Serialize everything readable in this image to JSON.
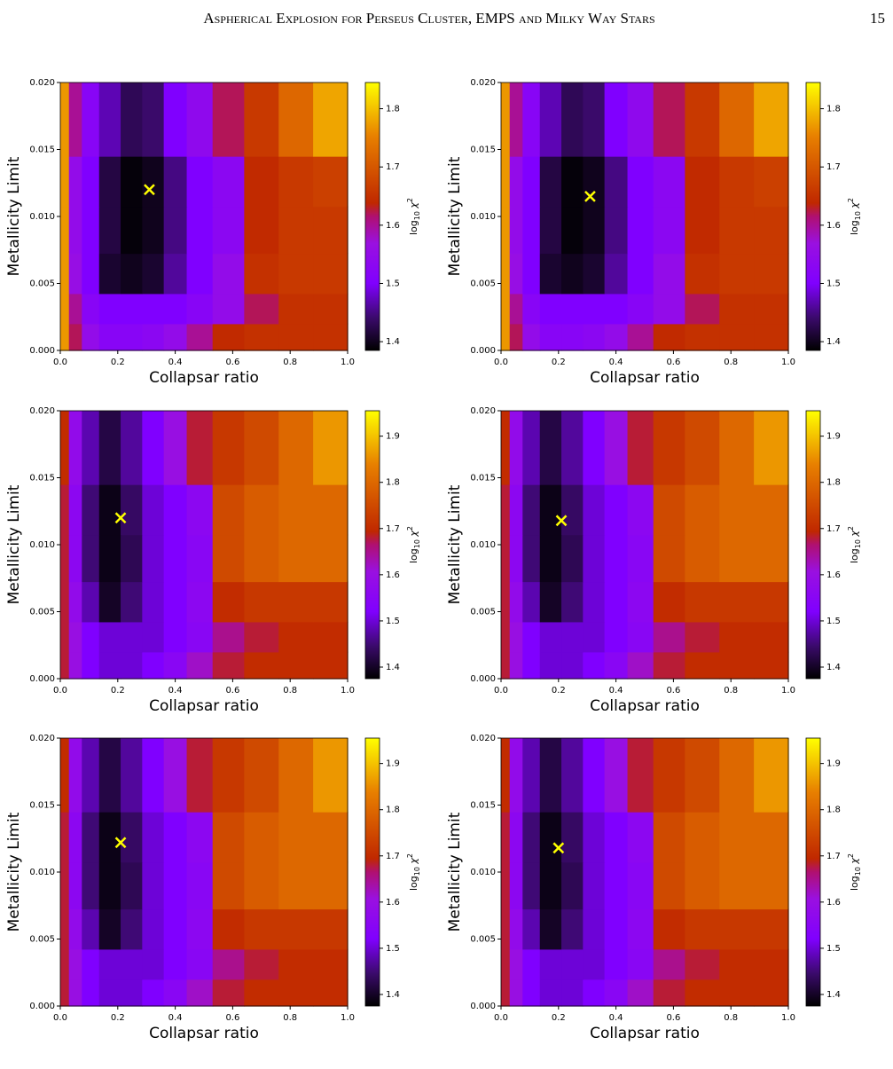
{
  "header": {
    "title": "Aspherical Explosion for Perseus Cluster, EMPS and Milky Way Stars",
    "page_number": "15"
  },
  "colormap": [
    {
      "at": 0,
      "color": "#000000"
    },
    {
      "at": 0.12,
      "color": "#3a0a6a"
    },
    {
      "at": 0.25,
      "color": "#8000ff"
    },
    {
      "at": 0.4,
      "color": "#9a10e0"
    },
    {
      "at": 0.5,
      "color": "#b01070"
    },
    {
      "at": 0.55,
      "color": "#c02800"
    },
    {
      "at": 0.8,
      "color": "#e88000"
    },
    {
      "at": 1,
      "color": "#ffff00"
    }
  ],
  "chart_data": [
    {
      "type": "heatmap",
      "xlabel": "Collapsar ratio",
      "ylabel": "Metallicity Limit",
      "colorbar_label": {
        "base": "log",
        "sub": "10",
        "sym": " χ",
        "sup": "2"
      },
      "x": [
        0.01,
        0.05,
        0.1,
        0.17,
        0.25,
        0.32,
        0.4,
        0.48,
        0.58,
        0.7,
        0.82,
        0.94
      ],
      "y": [
        0.001,
        0.003,
        0.0055,
        0.009,
        0.0125,
        0.0165
      ],
      "z": [
        [
          1.77,
          1.62,
          1.55,
          1.52,
          1.52,
          1.53,
          1.55,
          1.6,
          1.64,
          1.65,
          1.65,
          1.65
        ],
        [
          1.77,
          1.6,
          1.52,
          1.5,
          1.5,
          1.5,
          1.5,
          1.52,
          1.55,
          1.62,
          1.65,
          1.65
        ],
        [
          1.77,
          1.56,
          1.5,
          1.41,
          1.4,
          1.41,
          1.46,
          1.5,
          1.55,
          1.65,
          1.66,
          1.66
        ],
        [
          1.77,
          1.55,
          1.5,
          1.42,
          1.39,
          1.4,
          1.45,
          1.5,
          1.53,
          1.64,
          1.66,
          1.66
        ],
        [
          1.77,
          1.55,
          1.5,
          1.42,
          1.39,
          1.4,
          1.45,
          1.5,
          1.53,
          1.64,
          1.66,
          1.67
        ],
        [
          1.77,
          1.6,
          1.52,
          1.47,
          1.43,
          1.44,
          1.5,
          1.54,
          1.62,
          1.66,
          1.72,
          1.78
        ]
      ],
      "xlim": [
        0,
        1
      ],
      "ylim": [
        0,
        0.02
      ],
      "xticks": [
        {
          "value": 0,
          "label": "0.0"
        },
        0.2,
        0.4,
        0.6,
        0.8,
        {
          "value": 1,
          "label": "1.0"
        }
      ],
      "yticks": [
        {
          "value": 0,
          "label": "0.000"
        },
        0.005,
        {
          "value": 0.01,
          "label": "0.010"
        },
        0.015,
        {
          "value": 0.02,
          "label": "0.020"
        }
      ],
      "clim": [
        1.385,
        1.845
      ],
      "cticks": [
        1.4,
        1.5,
        1.6,
        1.7,
        1.8
      ],
      "marker": {
        "x": 0.31,
        "y": 0.012,
        "color": "#ffff00"
      }
    },
    {
      "type": "heatmap",
      "xlabel": "Collapsar ratio",
      "ylabel": "Metallicity Limit",
      "colorbar_label": {
        "base": "log",
        "sub": "10",
        "sym": " χ",
        "sup": "2"
      },
      "x": [
        0.01,
        0.05,
        0.1,
        0.17,
        0.25,
        0.32,
        0.4,
        0.48,
        0.58,
        0.7,
        0.82,
        0.94
      ],
      "y": [
        0.001,
        0.003,
        0.0055,
        0.009,
        0.0125,
        0.0165
      ],
      "z": [
        [
          1.77,
          1.62,
          1.55,
          1.52,
          1.52,
          1.53,
          1.55,
          1.6,
          1.64,
          1.65,
          1.65,
          1.65
        ],
        [
          1.77,
          1.6,
          1.52,
          1.5,
          1.5,
          1.5,
          1.5,
          1.52,
          1.55,
          1.62,
          1.65,
          1.65
        ],
        [
          1.77,
          1.56,
          1.5,
          1.41,
          1.4,
          1.41,
          1.46,
          1.5,
          1.55,
          1.65,
          1.66,
          1.66
        ],
        [
          1.77,
          1.55,
          1.5,
          1.42,
          1.39,
          1.4,
          1.45,
          1.5,
          1.53,
          1.64,
          1.66,
          1.66
        ],
        [
          1.77,
          1.55,
          1.5,
          1.42,
          1.39,
          1.4,
          1.45,
          1.5,
          1.53,
          1.64,
          1.66,
          1.67
        ],
        [
          1.77,
          1.6,
          1.52,
          1.47,
          1.43,
          1.44,
          1.5,
          1.54,
          1.62,
          1.66,
          1.72,
          1.78
        ]
      ],
      "xlim": [
        0,
        1
      ],
      "ylim": [
        0,
        0.02
      ],
      "xticks": [
        {
          "value": 0,
          "label": "0.0"
        },
        0.2,
        0.4,
        0.6,
        0.8,
        {
          "value": 1,
          "label": "1.0"
        }
      ],
      "yticks": [
        {
          "value": 0,
          "label": "0.000"
        },
        0.005,
        {
          "value": 0.01,
          "label": "0.010"
        },
        0.015,
        {
          "value": 0.02,
          "label": "0.020"
        }
      ],
      "clim": [
        1.385,
        1.845
      ],
      "cticks": [
        1.4,
        1.5,
        1.6,
        1.7,
        1.8
      ],
      "marker": {
        "x": 0.31,
        "y": 0.0115,
        "color": "#ffff00"
      }
    },
    {
      "type": "heatmap",
      "xlabel": "Collapsar ratio",
      "ylabel": "Metallicity Limit",
      "colorbar_label": {
        "base": "log",
        "sub": "10",
        "sym": " χ",
        "sup": "2"
      },
      "x": [
        0.01,
        0.05,
        0.1,
        0.17,
        0.25,
        0.32,
        0.4,
        0.48,
        0.58,
        0.7,
        0.82,
        0.94
      ],
      "y": [
        0.001,
        0.003,
        0.0055,
        0.009,
        0.0125,
        0.0165
      ],
      "z": [
        [
          1.68,
          1.6,
          1.52,
          1.5,
          1.5,
          1.52,
          1.55,
          1.62,
          1.68,
          1.7,
          1.7,
          1.7
        ],
        [
          1.68,
          1.6,
          1.52,
          1.5,
          1.5,
          1.5,
          1.52,
          1.55,
          1.65,
          1.68,
          1.7,
          1.7
        ],
        [
          1.68,
          1.58,
          1.48,
          1.4,
          1.45,
          1.5,
          1.52,
          1.56,
          1.7,
          1.72,
          1.72,
          1.72
        ],
        [
          1.68,
          1.56,
          1.45,
          1.39,
          1.43,
          1.5,
          1.52,
          1.55,
          1.75,
          1.78,
          1.8,
          1.8
        ],
        [
          1.68,
          1.56,
          1.45,
          1.39,
          1.44,
          1.5,
          1.52,
          1.56,
          1.75,
          1.78,
          1.8,
          1.8
        ],
        [
          1.7,
          1.58,
          1.48,
          1.42,
          1.47,
          1.52,
          1.6,
          1.68,
          1.72,
          1.75,
          1.8,
          1.86
        ]
      ],
      "xlim": [
        0,
        1
      ],
      "ylim": [
        0,
        0.02
      ],
      "xticks": [
        {
          "value": 0,
          "label": "0.0"
        },
        0.2,
        0.4,
        0.6,
        0.8,
        {
          "value": 1,
          "label": "1.0"
        }
      ],
      "yticks": [
        {
          "value": 0,
          "label": "0.000"
        },
        0.005,
        {
          "value": 0.01,
          "label": "0.010"
        },
        0.015,
        {
          "value": 0.02,
          "label": "0.020"
        }
      ],
      "clim": [
        1.375,
        1.955
      ],
      "cticks": [
        1.4,
        1.5,
        1.6,
        1.7,
        1.8,
        1.9
      ],
      "marker": {
        "x": 0.21,
        "y": 0.012,
        "color": "#ffff00"
      }
    },
    {
      "type": "heatmap",
      "xlabel": "Collapsar ratio",
      "ylabel": "Metallicity Limit",
      "colorbar_label": {
        "base": "log",
        "sub": "10",
        "sym": " χ",
        "sup": "2"
      },
      "x": [
        0.01,
        0.05,
        0.1,
        0.17,
        0.25,
        0.32,
        0.4,
        0.48,
        0.58,
        0.7,
        0.82,
        0.94
      ],
      "y": [
        0.001,
        0.003,
        0.0055,
        0.009,
        0.0125,
        0.0165
      ],
      "z": [
        [
          1.68,
          1.6,
          1.52,
          1.5,
          1.5,
          1.52,
          1.55,
          1.62,
          1.68,
          1.7,
          1.7,
          1.7
        ],
        [
          1.68,
          1.6,
          1.52,
          1.5,
          1.5,
          1.5,
          1.52,
          1.55,
          1.65,
          1.68,
          1.7,
          1.7
        ],
        [
          1.68,
          1.58,
          1.48,
          1.4,
          1.45,
          1.5,
          1.52,
          1.56,
          1.7,
          1.72,
          1.72,
          1.72
        ],
        [
          1.68,
          1.56,
          1.45,
          1.39,
          1.43,
          1.5,
          1.52,
          1.55,
          1.75,
          1.78,
          1.8,
          1.8
        ],
        [
          1.68,
          1.56,
          1.45,
          1.39,
          1.44,
          1.5,
          1.52,
          1.56,
          1.75,
          1.78,
          1.8,
          1.8
        ],
        [
          1.7,
          1.58,
          1.48,
          1.42,
          1.47,
          1.52,
          1.6,
          1.68,
          1.72,
          1.75,
          1.8,
          1.86
        ]
      ],
      "xlim": [
        0,
        1
      ],
      "ylim": [
        0,
        0.02
      ],
      "xticks": [
        {
          "value": 0,
          "label": "0.0"
        },
        0.2,
        0.4,
        0.6,
        0.8,
        {
          "value": 1,
          "label": "1.0"
        }
      ],
      "yticks": [
        {
          "value": 0,
          "label": "0.000"
        },
        0.005,
        {
          "value": 0.01,
          "label": "0.010"
        },
        0.015,
        {
          "value": 0.02,
          "label": "0.020"
        }
      ],
      "clim": [
        1.375,
        1.955
      ],
      "cticks": [
        1.4,
        1.5,
        1.6,
        1.7,
        1.8,
        1.9
      ],
      "marker": {
        "x": 0.21,
        "y": 0.0118,
        "color": "#ffff00"
      }
    },
    {
      "type": "heatmap",
      "xlabel": "Collapsar ratio",
      "ylabel": "Metallicity Limit",
      "colorbar_label": {
        "base": "log",
        "sub": "10",
        "sym": " χ",
        "sup": "2"
      },
      "x": [
        0.01,
        0.05,
        0.1,
        0.17,
        0.25,
        0.32,
        0.4,
        0.48,
        0.58,
        0.7,
        0.82,
        0.94
      ],
      "y": [
        0.001,
        0.003,
        0.0055,
        0.009,
        0.0125,
        0.0165
      ],
      "z": [
        [
          1.68,
          1.6,
          1.52,
          1.5,
          1.5,
          1.52,
          1.55,
          1.62,
          1.68,
          1.7,
          1.7,
          1.7
        ],
        [
          1.68,
          1.6,
          1.52,
          1.5,
          1.5,
          1.5,
          1.52,
          1.55,
          1.65,
          1.68,
          1.7,
          1.7
        ],
        [
          1.68,
          1.58,
          1.48,
          1.4,
          1.45,
          1.5,
          1.52,
          1.56,
          1.7,
          1.72,
          1.72,
          1.72
        ],
        [
          1.68,
          1.56,
          1.45,
          1.39,
          1.43,
          1.5,
          1.52,
          1.55,
          1.75,
          1.78,
          1.8,
          1.8
        ],
        [
          1.68,
          1.56,
          1.45,
          1.39,
          1.44,
          1.5,
          1.52,
          1.56,
          1.75,
          1.78,
          1.8,
          1.8
        ],
        [
          1.7,
          1.58,
          1.48,
          1.42,
          1.47,
          1.52,
          1.6,
          1.68,
          1.72,
          1.75,
          1.8,
          1.86
        ]
      ],
      "xlim": [
        0,
        1
      ],
      "ylim": [
        0,
        0.02
      ],
      "xticks": [
        {
          "value": 0,
          "label": "0.0"
        },
        0.2,
        0.4,
        0.6,
        0.8,
        {
          "value": 1,
          "label": "1.0"
        }
      ],
      "yticks": [
        {
          "value": 0,
          "label": "0.000"
        },
        0.005,
        {
          "value": 0.01,
          "label": "0.010"
        },
        0.015,
        {
          "value": 0.02,
          "label": "0.020"
        }
      ],
      "clim": [
        1.375,
        1.955
      ],
      "cticks": [
        1.4,
        1.5,
        1.6,
        1.7,
        1.8,
        1.9
      ],
      "marker": {
        "x": 0.21,
        "y": 0.0122,
        "color": "#ffff00"
      }
    },
    {
      "type": "heatmap",
      "xlabel": "Collapsar ratio",
      "ylabel": "Metallicity Limit",
      "colorbar_label": {
        "base": "log",
        "sub": "10",
        "sym": " χ",
        "sup": "2"
      },
      "x": [
        0.01,
        0.05,
        0.1,
        0.17,
        0.25,
        0.32,
        0.4,
        0.48,
        0.58,
        0.7,
        0.82,
        0.94
      ],
      "y": [
        0.001,
        0.003,
        0.0055,
        0.009,
        0.0125,
        0.0165
      ],
      "z": [
        [
          1.68,
          1.6,
          1.52,
          1.5,
          1.5,
          1.52,
          1.55,
          1.62,
          1.68,
          1.7,
          1.7,
          1.7
        ],
        [
          1.68,
          1.6,
          1.52,
          1.5,
          1.5,
          1.5,
          1.52,
          1.55,
          1.65,
          1.68,
          1.7,
          1.7
        ],
        [
          1.68,
          1.58,
          1.48,
          1.4,
          1.45,
          1.5,
          1.52,
          1.56,
          1.7,
          1.72,
          1.72,
          1.72
        ],
        [
          1.68,
          1.56,
          1.45,
          1.39,
          1.43,
          1.5,
          1.52,
          1.55,
          1.75,
          1.78,
          1.8,
          1.8
        ],
        [
          1.68,
          1.56,
          1.45,
          1.39,
          1.44,
          1.5,
          1.52,
          1.56,
          1.75,
          1.78,
          1.8,
          1.8
        ],
        [
          1.7,
          1.58,
          1.48,
          1.42,
          1.47,
          1.52,
          1.6,
          1.68,
          1.72,
          1.75,
          1.8,
          1.86
        ]
      ],
      "xlim": [
        0,
        1
      ],
      "ylim": [
        0,
        0.02
      ],
      "xticks": [
        {
          "value": 0,
          "label": "0.0"
        },
        0.2,
        0.4,
        0.6,
        0.8,
        {
          "value": 1,
          "label": "1.0"
        }
      ],
      "yticks": [
        {
          "value": 0,
          "label": "0.000"
        },
        0.005,
        {
          "value": 0.01,
          "label": "0.010"
        },
        0.015,
        {
          "value": 0.02,
          "label": "0.020"
        }
      ],
      "clim": [
        1.375,
        1.955
      ],
      "cticks": [
        1.4,
        1.5,
        1.6,
        1.7,
        1.8,
        1.9
      ],
      "marker": {
        "x": 0.2,
        "y": 0.0118,
        "color": "#ffff00"
      }
    }
  ]
}
